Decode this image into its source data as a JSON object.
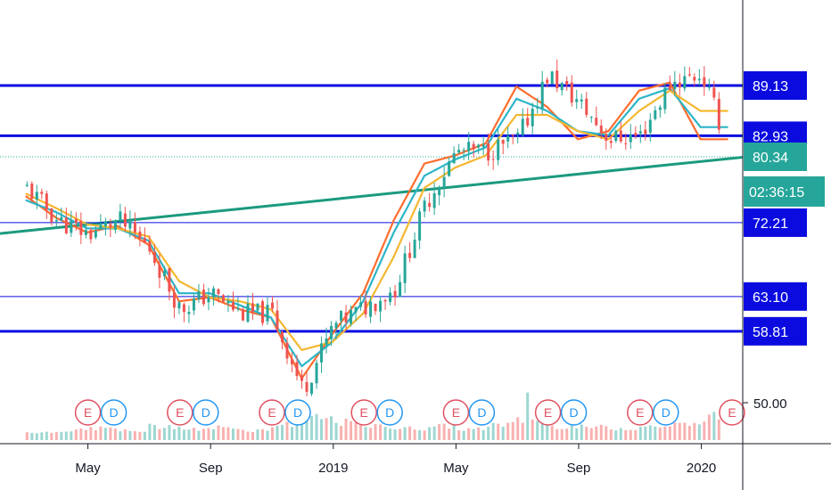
{
  "colors": {
    "up": "#26a69a",
    "down": "#ef5350",
    "level_line": "#0b0be0",
    "trendline": "#1b9a7e",
    "ma_fast": "#ff6d2e",
    "ma_mid": "#2cb5c8",
    "ma_slow": "#f5b731",
    "earnings": "#e05060",
    "dividend": "#2196f3",
    "axis": "#131722",
    "current_price_bg": "#26a69a"
  },
  "chart_data": {
    "type": "candlestick",
    "title": "",
    "x_ticks": [
      "May",
      "Sep",
      "2019",
      "May",
      "Sep",
      "2020"
    ],
    "y_ticks": [
      "50.00"
    ],
    "ylim": [
      46,
      97
    ],
    "horizontal_levels": [
      {
        "value": 89.13,
        "label": "89.13",
        "weight": "bold"
      },
      {
        "value": 82.93,
        "label": "82.93",
        "weight": "bold"
      },
      {
        "value": 72.21,
        "label": "72.21",
        "weight": "thin"
      },
      {
        "value": 63.1,
        "label": "63.10",
        "weight": "thin"
      },
      {
        "value": 58.81,
        "label": "58.81",
        "weight": "bold"
      }
    ],
    "current_price": {
      "value": 80.34,
      "label": "80.34",
      "countdown": "02:36:15"
    },
    "trendline": {
      "start": [
        "2018-03",
        71.2
      ],
      "end": [
        "2020-02",
        80.5
      ]
    },
    "price_series": [
      {
        "date": "2018-03",
        "value": 76.5
      },
      {
        "date": "2018-04",
        "value": 72.5
      },
      {
        "date": "2018-05",
        "value": 70.8
      },
      {
        "date": "2018-06",
        "value": 72.5
      },
      {
        "date": "2018-07",
        "value": 69.0
      },
      {
        "date": "2018-08",
        "value": 61.5
      },
      {
        "date": "2018-09",
        "value": 63.5
      },
      {
        "date": "2018-10",
        "value": 61.0
      },
      {
        "date": "2018-11",
        "value": 61.0
      },
      {
        "date": "2018-12",
        "value": 51.5
      },
      {
        "date": "2019-01",
        "value": 59.5
      },
      {
        "date": "2019-03",
        "value": 64.0
      },
      {
        "date": "2019-04",
        "value": 74.5
      },
      {
        "date": "2019-05",
        "value": 81.0
      },
      {
        "date": "2019-06",
        "value": 81.0
      },
      {
        "date": "2019-07",
        "value": 82.5
      },
      {
        "date": "2019-08",
        "value": 90.5
      },
      {
        "date": "2019-09",
        "value": 87.0
      },
      {
        "date": "2019-10",
        "value": 82.5
      },
      {
        "date": "2019-11",
        "value": 83.0
      },
      {
        "date": "2019-12",
        "value": 89.5
      },
      {
        "date": "2020-01",
        "value": 90.5
      },
      {
        "date": "2020-02",
        "value": 80.34
      }
    ],
    "moving_averages": [
      {
        "name": "fast",
        "color": "#ff6d2e",
        "values": [
          75.5,
          72.8,
          71.0,
          71.8,
          69.5,
          62.5,
          63.0,
          61.5,
          60.5,
          53.0,
          58.5,
          63.5,
          72.5,
          79.5,
          80.5,
          82.0,
          89.0,
          86.5,
          82.5,
          83.5,
          88.5,
          89.5,
          82.5
        ]
      },
      {
        "name": "mid",
        "color": "#2cb5c8",
        "values": [
          75.0,
          73.5,
          71.5,
          71.5,
          70.0,
          63.5,
          63.5,
          62.0,
          60.5,
          54.5,
          57.5,
          62.5,
          71.0,
          78.0,
          80.0,
          81.5,
          87.5,
          86.0,
          83.5,
          83.0,
          87.5,
          88.8,
          84.0
        ]
      },
      {
        "name": "slow",
        "color": "#f5b731",
        "values": [
          75.8,
          74.0,
          72.0,
          71.5,
          70.5,
          65.0,
          63.0,
          62.5,
          61.5,
          56.5,
          57.5,
          61.0,
          68.0,
          76.5,
          79.0,
          80.5,
          85.5,
          85.5,
          83.5,
          82.5,
          86.0,
          88.5,
          86.0
        ]
      }
    ],
    "volume": {
      "relative_heights": [
        0.15,
        0.2,
        0.25,
        0.18,
        0.3,
        0.22,
        0.28,
        0.2,
        0.35,
        0.5,
        0.4,
        0.3,
        0.25,
        0.3,
        0.22,
        0.35,
        0.45,
        0.3,
        0.28,
        0.25,
        0.3,
        0.35,
        0.55
      ]
    },
    "events": [
      {
        "date": "2018-05",
        "marks": [
          "E",
          "D"
        ]
      },
      {
        "date": "2018-08",
        "marks": [
          "E",
          "D"
        ]
      },
      {
        "date": "2018-11",
        "marks": [
          "E",
          "D"
        ]
      },
      {
        "date": "2019-02",
        "marks": [
          "E",
          "D"
        ]
      },
      {
        "date": "2019-05",
        "marks": [
          "E",
          "D"
        ]
      },
      {
        "date": "2019-08",
        "marks": [
          "E",
          "D"
        ]
      },
      {
        "date": "2019-11",
        "marks": [
          "E",
          "D"
        ]
      },
      {
        "date": "2020-02",
        "marks": [
          "E"
        ]
      }
    ]
  }
}
